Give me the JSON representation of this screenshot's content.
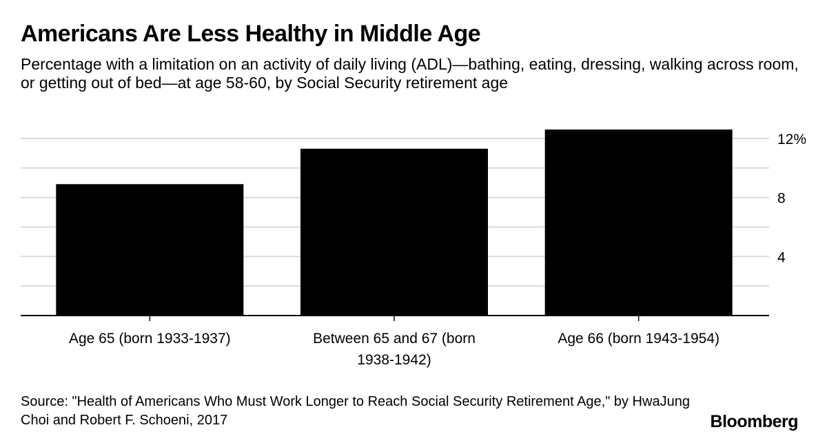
{
  "chart_data": {
    "type": "bar",
    "title": "Americans Are Less Healthy in Middle Age",
    "subtitle": "Percentage with a limitation on an activity of daily living (ADL)—bathing, eating, dressing, walking across room, or getting out of bed—at age 58-60, by Social Security retirement age",
    "categories": [
      [
        "Age 65 (born 1933-1937)"
      ],
      [
        "Between 65 and 67 (born",
        "1938-1942)"
      ],
      [
        "Age 66 (born 1943-1954)"
      ]
    ],
    "values": [
      8.9,
      11.3,
      12.6
    ],
    "ylim": [
      0,
      12.6
    ],
    "yticks": [
      2,
      4,
      6,
      8,
      10,
      12
    ],
    "ytick_labels": [
      "",
      "4",
      "",
      "8",
      "",
      "12%"
    ],
    "grid": true,
    "y_axis_side": "right",
    "bar_color": "#000000",
    "grid_color": "#d9d9d9"
  },
  "source": "Source: \"Health of Americans Who Must Work Longer to Reach Social Security Retirement Age,\" by HwaJung Choi and Robert F. Schoeni, 2017",
  "brand": "Bloomberg"
}
